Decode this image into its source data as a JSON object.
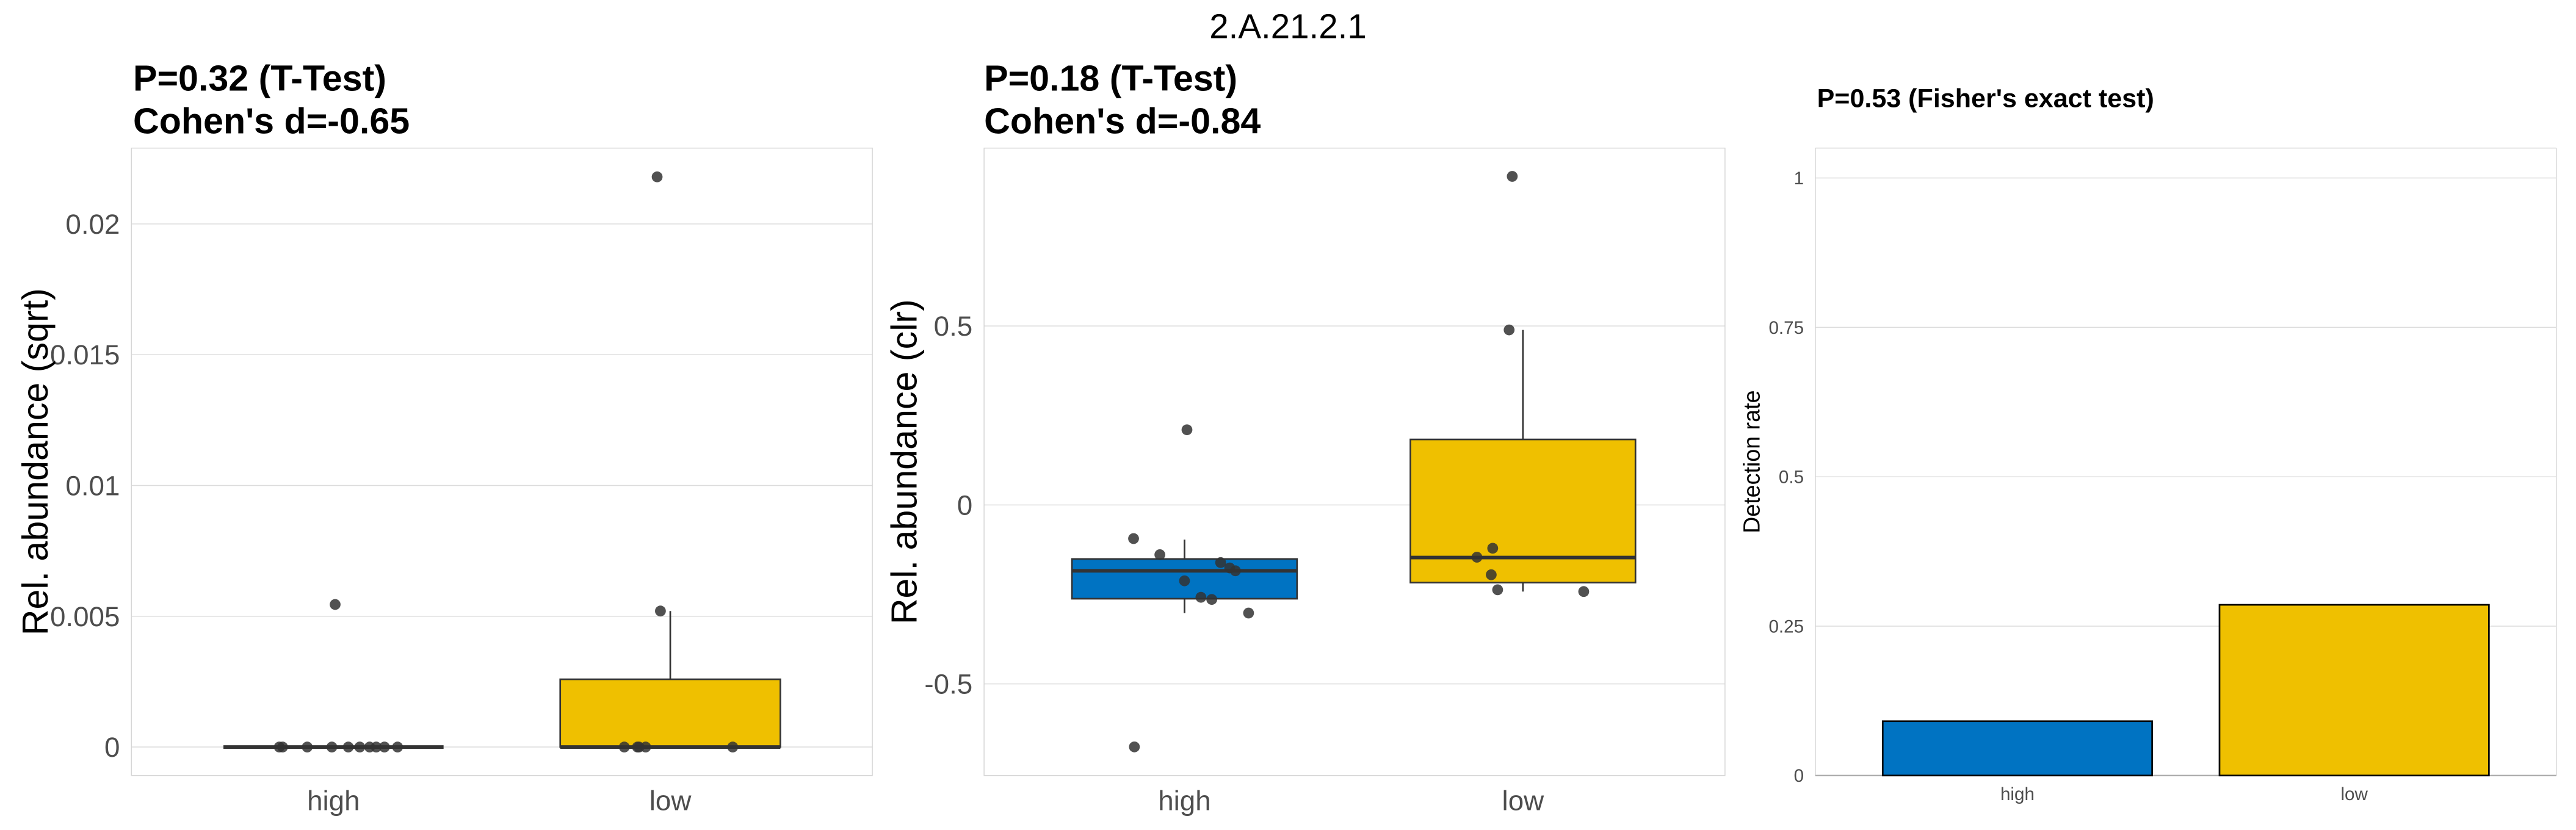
{
  "figure_title": "2.A.21.2.1",
  "colors": {
    "high": "#0073C2",
    "low": "#EFC000",
    "point": "#333333"
  },
  "chart_data": [
    {
      "type": "box",
      "title_lines": [
        "P=0.32 (T-Test)",
        "Cohen's d=-0.65"
      ],
      "ylabel": "Rel. abundance (sqrt)",
      "xlabel": "",
      "categories": [
        "high",
        "low"
      ],
      "ylim": [
        -0.00109,
        0.0229
      ],
      "yticks": [
        0,
        0.005,
        0.01,
        0.015,
        0.02
      ],
      "ytick_labels": [
        "0",
        "0.005",
        "0.01",
        "0.015",
        "0.02"
      ],
      "grid": true,
      "groups": [
        {
          "name": "high",
          "q1": 0,
          "median": 0,
          "q3": 0,
          "whisker_low": 0,
          "whisker_high": 0,
          "points": [
            0,
            0,
            0,
            0,
            0,
            0,
            0,
            0,
            0,
            0,
            0.00545
          ]
        },
        {
          "name": "low",
          "q1": 0,
          "median": 0,
          "q3": 0.00259,
          "whisker_low": 0,
          "whisker_high": 0.0052,
          "points": [
            0.0218,
            0.0052,
            0,
            0,
            0,
            0,
            0
          ]
        }
      ]
    },
    {
      "type": "box",
      "title_lines": [
        "P=0.18 (T-Test)",
        "Cohen's d=-0.84"
      ],
      "ylabel": "Rel. abundance (clr)",
      "xlabel": "",
      "categories": [
        "high",
        "low"
      ],
      "ylim": [
        -0.756,
        0.997
      ],
      "yticks": [
        -0.5,
        0,
        0.5
      ],
      "ytick_labels": [
        "-0.5",
        "0",
        "0.5"
      ],
      "grid": true,
      "groups": [
        {
          "name": "high",
          "q1": -0.262,
          "median": -0.184,
          "q3": -0.151,
          "whisker_low": -0.302,
          "whisker_high": -0.097,
          "points": [
            0.21,
            -0.094,
            -0.139,
            -0.161,
            -0.176,
            -0.184,
            -0.212,
            -0.258,
            -0.264,
            -0.302,
            -0.676
          ]
        },
        {
          "name": "low",
          "q1": -0.217,
          "median": -0.147,
          "q3": 0.183,
          "whisker_low": -0.242,
          "whisker_high": 0.489,
          "points": [
            0.918,
            0.489,
            -0.121,
            -0.146,
            -0.195,
            -0.237,
            -0.242
          ]
        }
      ]
    },
    {
      "type": "bar",
      "title": "P=0.53 (Fisher's exact test)",
      "ylabel": "Detection rate",
      "xlabel": "",
      "categories": [
        "high",
        "low"
      ],
      "values": [
        0.0909,
        0.2857
      ],
      "ylim": [
        0,
        1.05
      ],
      "yticks": [
        0,
        0.25,
        0.5,
        0.75,
        1
      ],
      "ytick_labels": [
        "0",
        "0.25",
        "0.5",
        "0.75",
        "1"
      ],
      "grid": true
    }
  ]
}
